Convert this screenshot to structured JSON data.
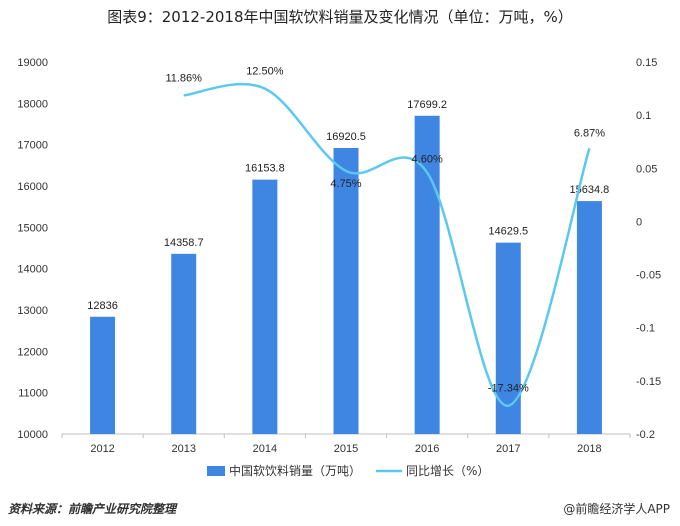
{
  "title": "图表9：2012-2018年中国软饮料销量及变化情况（单位：万吨，%）",
  "source": "资料来源：前瞻产业研究院整理",
  "credit": "@前瞻经济学人APP",
  "colors": {
    "bar": "#3f86e2",
    "line": "#5bc8f2",
    "axis": "#bfbfbf"
  },
  "chart_data": {
    "type": "bar+line",
    "categories": [
      "2012",
      "2013",
      "2014",
      "2015",
      "2016",
      "2017",
      "2018"
    ],
    "series": [
      {
        "name": "中国软饮料销量（万吨）",
        "type": "bar",
        "axis": "left",
        "values": [
          12836,
          14358.7,
          16153.8,
          16920.5,
          17699.2,
          14629.5,
          15634.8
        ],
        "labels": [
          "12836",
          "14358.7",
          "16153.8",
          "16920.5",
          "17699.2",
          "14629.5",
          "15634.8"
        ]
      },
      {
        "name": "同比增长（%）",
        "type": "line",
        "axis": "right",
        "x": [
          "2013",
          "2014",
          "2015",
          "2016",
          "2017",
          "2018"
        ],
        "values": [
          0.1186,
          0.125,
          0.0475,
          0.046,
          -0.1734,
          0.0687
        ],
        "labels": [
          "11.86%",
          "12.50%",
          "4.75%",
          "4.60%",
          "-17.34%",
          "6.87%"
        ]
      }
    ],
    "y_left": {
      "min": 10000,
      "max": 19000,
      "ticks": [
        "10000",
        "11000",
        "12000",
        "13000",
        "14000",
        "15000",
        "16000",
        "17000",
        "18000",
        "19000"
      ]
    },
    "y_right": {
      "min": -0.2,
      "max": 0.15,
      "ticks": [
        "0.15",
        "0.1",
        "0.05",
        "0",
        "-0.05",
        "-0.1",
        "-0.15",
        "-0.2"
      ]
    },
    "legend": "bottom",
    "grid": false
  }
}
